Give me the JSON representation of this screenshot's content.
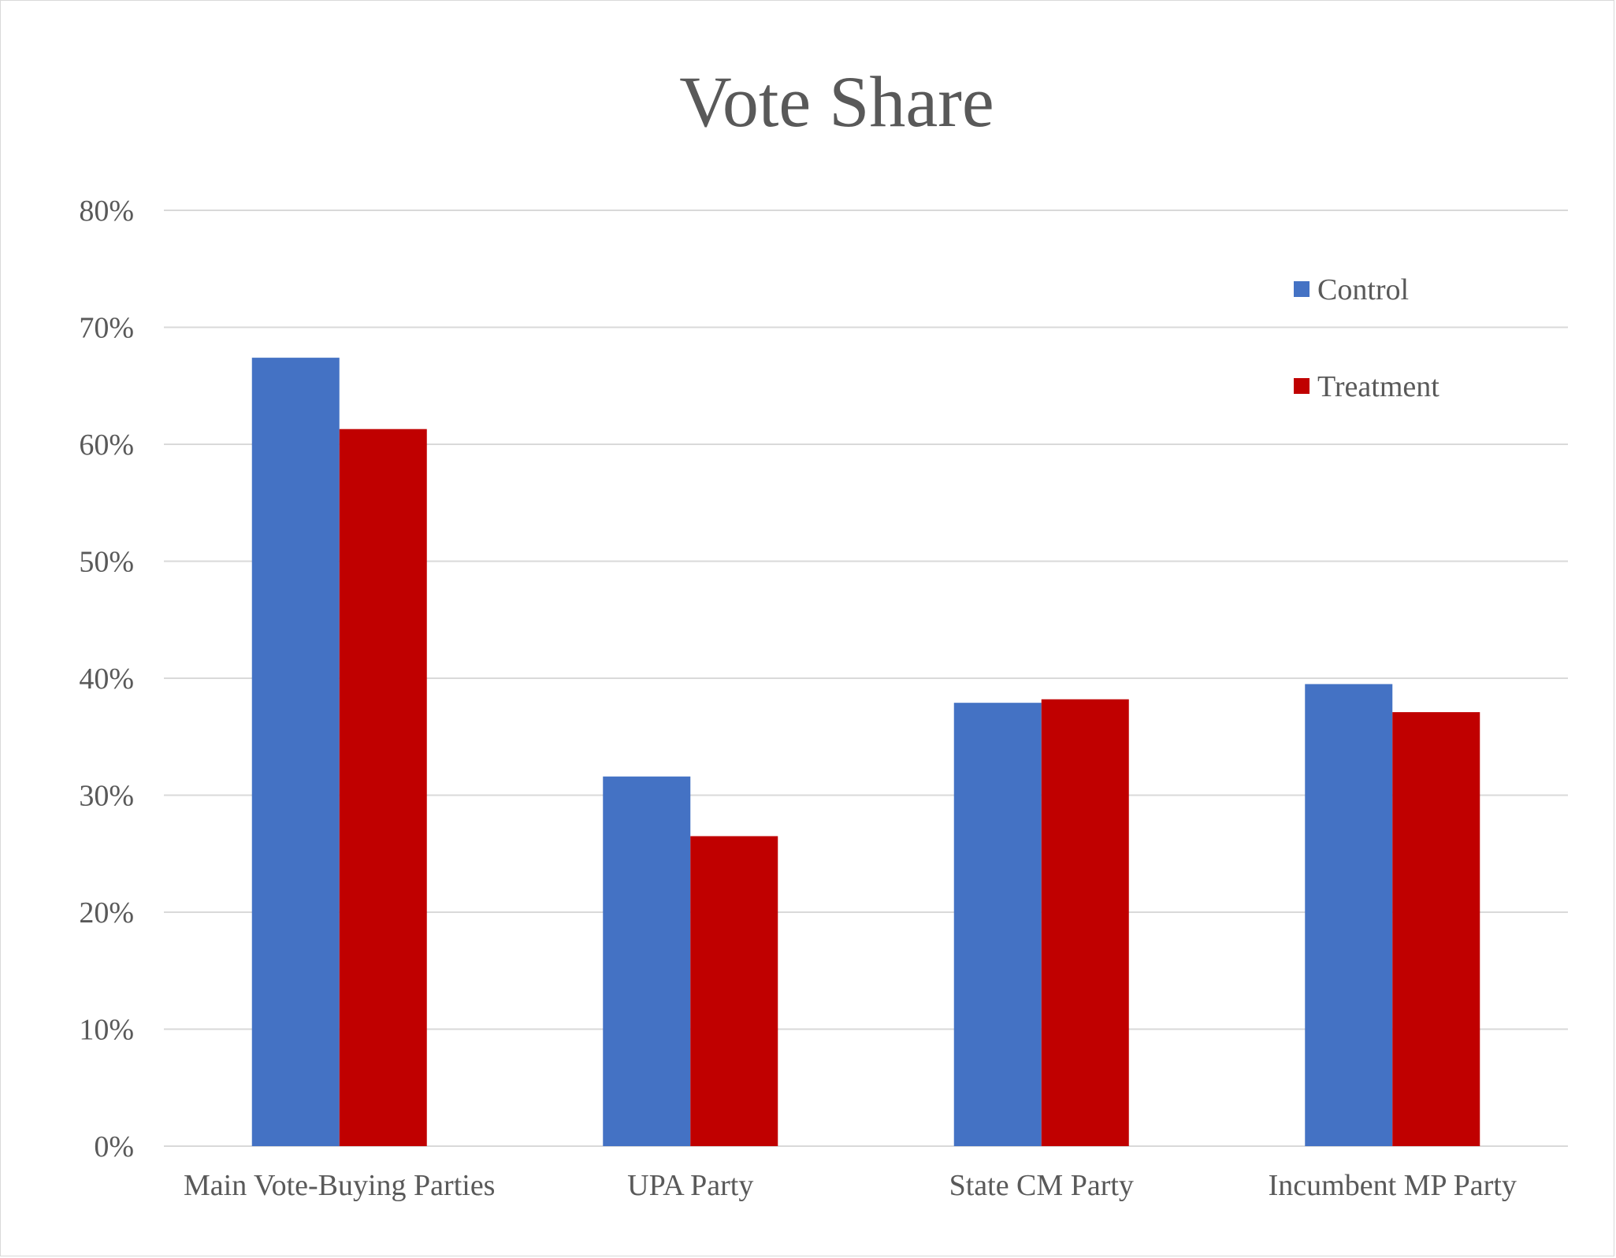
{
  "chart_data": {
    "type": "bar",
    "title": "Vote Share",
    "xlabel": "",
    "ylabel": "",
    "categories": [
      "Main Vote-Buying Parties",
      "UPA Party",
      "State CM Party",
      "Incumbent MP Party"
    ],
    "series": [
      {
        "name": "Control",
        "color": "#4472c4",
        "values": [
          0.674,
          0.316,
          0.379,
          0.395
        ]
      },
      {
        "name": "Treatment",
        "color": "#c00000",
        "values": [
          0.613,
          0.265,
          0.382,
          0.371
        ]
      }
    ],
    "ylim": [
      0,
      0.8
    ],
    "yticks": [
      0,
      0.1,
      0.2,
      0.3,
      0.4,
      0.5,
      0.6,
      0.7,
      0.8
    ],
    "ytick_labels": [
      "0%",
      "10%",
      "20%",
      "30%",
      "40%",
      "50%",
      "60%",
      "70%",
      "80%"
    ],
    "grid": true,
    "legend_position": "top-right"
  }
}
